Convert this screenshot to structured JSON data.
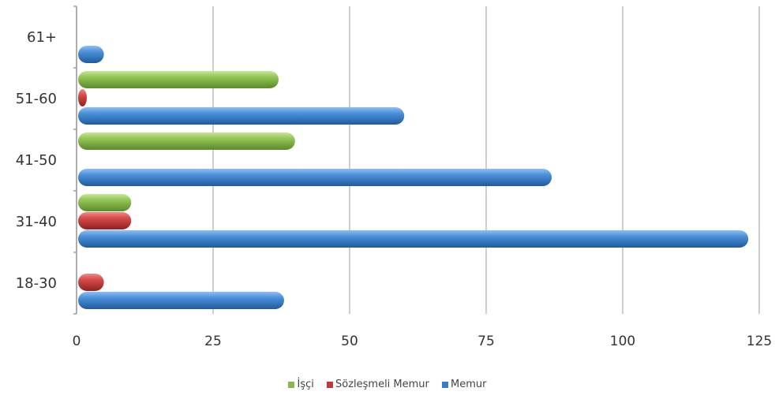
{
  "chart_data": {
    "type": "bar",
    "orientation": "horizontal",
    "style": "3d-cylinder",
    "categories": [
      "18-30",
      "31-40",
      "41-50",
      "51-60",
      "61+"
    ],
    "series": [
      {
        "name": "Memur",
        "color": "#3a7ec6",
        "values": [
          38,
          123,
          87,
          60,
          5
        ]
      },
      {
        "name": "Sözleşmeli Memur",
        "color": "#c0393a",
        "values": [
          5,
          10,
          0,
          1,
          0
        ]
      },
      {
        "name": "İşçi",
        "color": "#86b84a",
        "values": [
          0,
          10,
          40,
          37,
          0
        ]
      }
    ],
    "xlim": [
      0,
      125
    ],
    "xticks": [
      "0",
      "25",
      "50",
      "75",
      "100",
      "125"
    ],
    "grid": true,
    "legend_position": "bottom",
    "legend_order": [
      "İşçi",
      "Sözleşmeli Memur",
      "Memur"
    ]
  }
}
